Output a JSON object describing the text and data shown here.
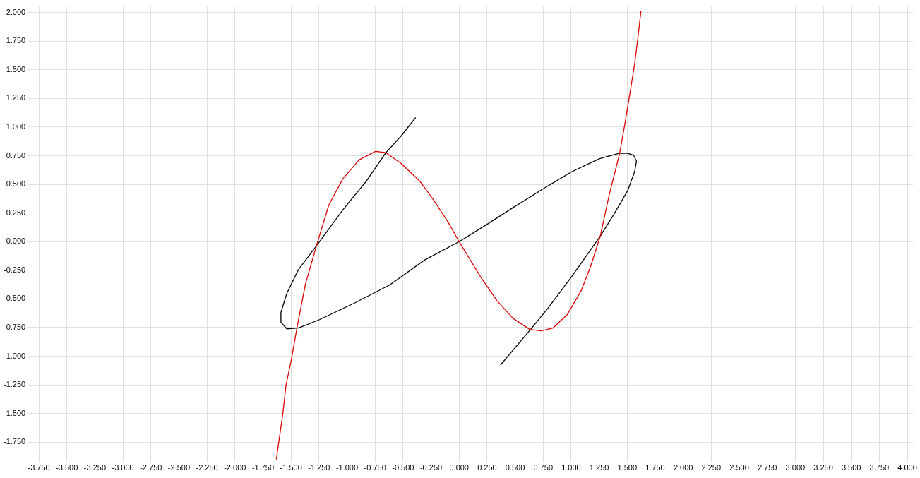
{
  "chart_data": {
    "type": "line",
    "xlim": [
      -3.85,
      4.05
    ],
    "ylim": [
      -1.92,
      2.05
    ],
    "xticks": [
      {
        "value": -3.75,
        "label": "-3.750"
      },
      {
        "value": -3.5,
        "label": "-3.500"
      },
      {
        "value": -3.25,
        "label": "-3.250"
      },
      {
        "value": -3,
        "label": "-3.000"
      },
      {
        "value": -2.75,
        "label": "-2.750"
      },
      {
        "value": -2.5,
        "label": "-2.500"
      },
      {
        "value": -2.25,
        "label": "-2.250"
      },
      {
        "value": -2,
        "label": "-2.000"
      },
      {
        "value": -1.75,
        "label": "-1.750"
      },
      {
        "value": -1.5,
        "label": "-1.500"
      },
      {
        "value": -1.25,
        "label": "-1.250"
      },
      {
        "value": -1,
        "label": "-1.000"
      },
      {
        "value": -0.75,
        "label": "-0.750"
      },
      {
        "value": -0.5,
        "label": "-0.500"
      },
      {
        "value": -0.25,
        "label": "-0.250"
      },
      {
        "value": 0,
        "label": "0.000"
      },
      {
        "value": 0.25,
        "label": "0.250"
      },
      {
        "value": 0.5,
        "label": "0.500"
      },
      {
        "value": 0.75,
        "label": "0.750"
      },
      {
        "value": 1,
        "label": "1.000"
      },
      {
        "value": 1.25,
        "label": "1.250"
      },
      {
        "value": 1.5,
        "label": "1.500"
      },
      {
        "value": 1.75,
        "label": "1.750"
      },
      {
        "value": 2,
        "label": "2.000"
      },
      {
        "value": 2.25,
        "label": "2.250"
      },
      {
        "value": 2.5,
        "label": "2.500"
      },
      {
        "value": 2.75,
        "label": "2.750"
      },
      {
        "value": 3,
        "label": "3.000"
      },
      {
        "value": 3.25,
        "label": "3.250"
      },
      {
        "value": 3.5,
        "label": "3.500"
      },
      {
        "value": 3.75,
        "label": "3.750"
      },
      {
        "value": 4,
        "label": "4.000"
      }
    ],
    "yticks": [
      {
        "value": -1.75,
        "label": "-1.750"
      },
      {
        "value": -1.5,
        "label": "-1.500"
      },
      {
        "value": -1.25,
        "label": "-1.250"
      },
      {
        "value": -1,
        "label": "-1.000"
      },
      {
        "value": -0.75,
        "label": "-0.750"
      },
      {
        "value": -0.5,
        "label": "-0.500"
      },
      {
        "value": -0.25,
        "label": "-0.250"
      },
      {
        "value": 0,
        "label": "0.000"
      },
      {
        "value": 0.25,
        "label": "0.250"
      },
      {
        "value": 0.5,
        "label": "0.500"
      },
      {
        "value": 0.75,
        "label": "0.750"
      },
      {
        "value": 1,
        "label": "1.000"
      },
      {
        "value": 1.25,
        "label": "1.250"
      },
      {
        "value": 1.5,
        "label": "1.500"
      },
      {
        "value": 1.75,
        "label": "1.750"
      },
      {
        "value": 2,
        "label": "2.000"
      }
    ],
    "grid": true,
    "legend": false,
    "marker": "none",
    "line_style": "solid",
    "series": [
      {
        "color": "#dd0000",
        "x": [
          -1.631,
          -1.573,
          -1.544,
          -1.496,
          -1.448,
          -1.371,
          -1.273,
          -1.163,
          -1.038,
          -0.892,
          -0.746,
          -0.653,
          -0.517,
          -0.35,
          -0.225,
          -0.1,
          0,
          0.191,
          0.338,
          0.483,
          0.629,
          0.733,
          0.838,
          0.963,
          1.088,
          1.171,
          1.26,
          1.338,
          1.433,
          1.483,
          1.525,
          1.566,
          1.598,
          1.623
        ],
        "values": [
          -1.9,
          -1.5,
          -1.25,
          -1.025,
          -0.759,
          -0.369,
          -0.036,
          0.319,
          0.548,
          0.714,
          0.788,
          0.777,
          0.683,
          0.527,
          0.36,
          0.173,
          0,
          -0.306,
          -0.515,
          -0.671,
          -0.765,
          -0.779,
          -0.754,
          -0.64,
          -0.431,
          -0.223,
          0.048,
          0.402,
          0.773,
          1.048,
          1.298,
          1.548,
          1.798,
          2.016
        ]
      },
      {
        "color": "#000000",
        "x": [
          0.369,
          0.639,
          0.796,
          1.004,
          1.26,
          1.379,
          1.504,
          1.566,
          1.583,
          1.556,
          1.504,
          1.433,
          1.254,
          1.004,
          0.754,
          0.483,
          0.233,
          0,
          -0.309,
          -0.621,
          -0.934,
          -1.246,
          -1.434,
          -1.538,
          -1.59,
          -1.59,
          -1.538,
          -1.434,
          -1.273,
          -1.038,
          -0.829,
          -0.653,
          -0.517,
          -0.388
        ],
        "values": [
          -1.077,
          -0.765,
          -0.577,
          -0.306,
          0.048,
          0.235,
          0.444,
          0.61,
          0.704,
          0.756,
          0.771,
          0.773,
          0.725,
          0.61,
          0.464,
          0.298,
          0.141,
          0,
          -0.161,
          -0.379,
          -0.536,
          -0.681,
          -0.754,
          -0.761,
          -0.703,
          -0.619,
          -0.453,
          -0.244,
          -0.036,
          0.277,
          0.527,
          0.777,
          0.923,
          1.083
        ]
      }
    ]
  }
}
